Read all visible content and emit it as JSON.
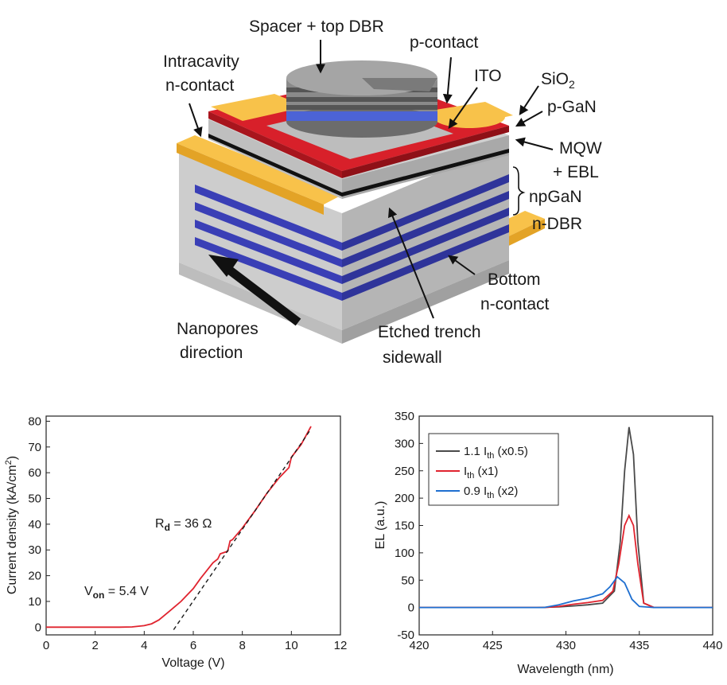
{
  "diagram": {
    "labels": {
      "spacer_top_dbr": "Spacer + top DBR",
      "p_contact": "p-contact",
      "intracavity_1": "Intracavity",
      "intracavity_2": "n-contact",
      "ito": "ITO",
      "sio2_base": "SiO",
      "sio2_sub": "2",
      "p_gan": "p-GaN",
      "mqw_1": "MQW",
      "mqw_2": "+ EBL",
      "npgan": "npGaN",
      "n_dbr": "n-DBR",
      "bottom_1": "Bottom",
      "bottom_2": "n-contact",
      "nanopores_1": "Nanopores",
      "nanopores_2": "direction",
      "etched_1": "Etched trench",
      "etched_2": "sidewall"
    },
    "colors": {
      "gold": "#f6b22c",
      "red": "#d8202a",
      "blue": "#3a3fb6",
      "gray": "#c8c8c8",
      "dark_gray": "#7d7d7d"
    }
  },
  "chart_data": [
    {
      "type": "line",
      "title": "",
      "xlabel": "Voltage (V)",
      "ylabel_base": "Current density (kA/cm",
      "ylabel_sup": "2",
      "ylabel_end": ")",
      "xlim": [
        0,
        12
      ],
      "ylim": [
        -3,
        82
      ],
      "xticks": [
        "0",
        "2",
        "4",
        "6",
        "8",
        "10",
        "12"
      ],
      "yticks": [
        "0",
        "10",
        "20",
        "30",
        "40",
        "50",
        "60",
        "70",
        "80"
      ],
      "annotations": {
        "rd_base": "R",
        "rd_sub": "d",
        "rd_rest": " = 36 Ω",
        "von_base": "V",
        "von_sub": "on",
        "von_rest": " = 5.4 V"
      },
      "series": [
        {
          "color": "#e0242f",
          "x": [
            0,
            1,
            2,
            3,
            3.5,
            4.0,
            4.3,
            4.6,
            5.0,
            5.5,
            6.0,
            6.3,
            6.8,
            7.0,
            7.1,
            7.4,
            7.5,
            7.6,
            8.0,
            8.5,
            9.0,
            9.5,
            9.9,
            10.0,
            10.4,
            10.8
          ],
          "y": [
            0,
            0,
            0,
            0,
            0.1,
            0.6,
            1.3,
            2.8,
            6,
            10,
            15,
            19,
            25,
            26.5,
            28.5,
            29.5,
            33.5,
            34,
            38.5,
            45,
            52,
            58,
            62,
            66,
            71,
            78
          ]
        },
        {
          "dashed": true,
          "color": "#1a1a1a",
          "x": [
            5.2,
            10.8
          ],
          "y": [
            -1,
            77
          ]
        }
      ]
    },
    {
      "type": "line",
      "title": "",
      "xlabel": "Wavelength (nm)",
      "ylabel": "EL (a.u.)",
      "xlim": [
        420,
        440
      ],
      "ylim": [
        -50,
        350
      ],
      "xticks": [
        "420",
        "425",
        "430",
        "435",
        "440"
      ],
      "yticks": [
        "-50",
        "0",
        "50",
        "100",
        "150",
        "200",
        "250",
        "300",
        "350"
      ],
      "legend_position": "top-left",
      "series": [
        {
          "name_base": "1.1 I",
          "name_sub": "th",
          "name_rest": " (x0.5)",
          "color": "#4a4a4a",
          "x": [
            420,
            428,
            429.5,
            430.5,
            431.5,
            432.5,
            433.3,
            433.7,
            434.0,
            434.3,
            434.6,
            434.9,
            435.3,
            436,
            440
          ],
          "y": [
            0,
            0,
            1,
            3,
            5,
            8,
            30,
            120,
            250,
            330,
            280,
            120,
            8,
            0,
            0
          ]
        },
        {
          "name_base": "I",
          "name_sub": "th",
          "name_rest": " (x1)",
          "color": "#e0242f",
          "x": [
            420,
            428.5,
            429.5,
            430.5,
            431.5,
            432.5,
            433.2,
            433.6,
            434.0,
            434.3,
            434.6,
            434.9,
            435.3,
            436,
            440
          ],
          "y": [
            0,
            0,
            2,
            6,
            9,
            13,
            30,
            80,
            150,
            168,
            150,
            80,
            8,
            0,
            0
          ]
        },
        {
          "name_base": "0.9 I",
          "name_sub": "th",
          "name_rest": " (x2)",
          "color": "#1f6fd0",
          "x": [
            420,
            428.5,
            429.5,
            430.5,
            431.5,
            432.5,
            433.0,
            433.5,
            434.0,
            434.5,
            435.0,
            436,
            440
          ],
          "y": [
            0,
            0,
            5,
            12,
            17,
            25,
            38,
            56,
            45,
            15,
            2,
            0,
            0
          ]
        }
      ]
    }
  ]
}
